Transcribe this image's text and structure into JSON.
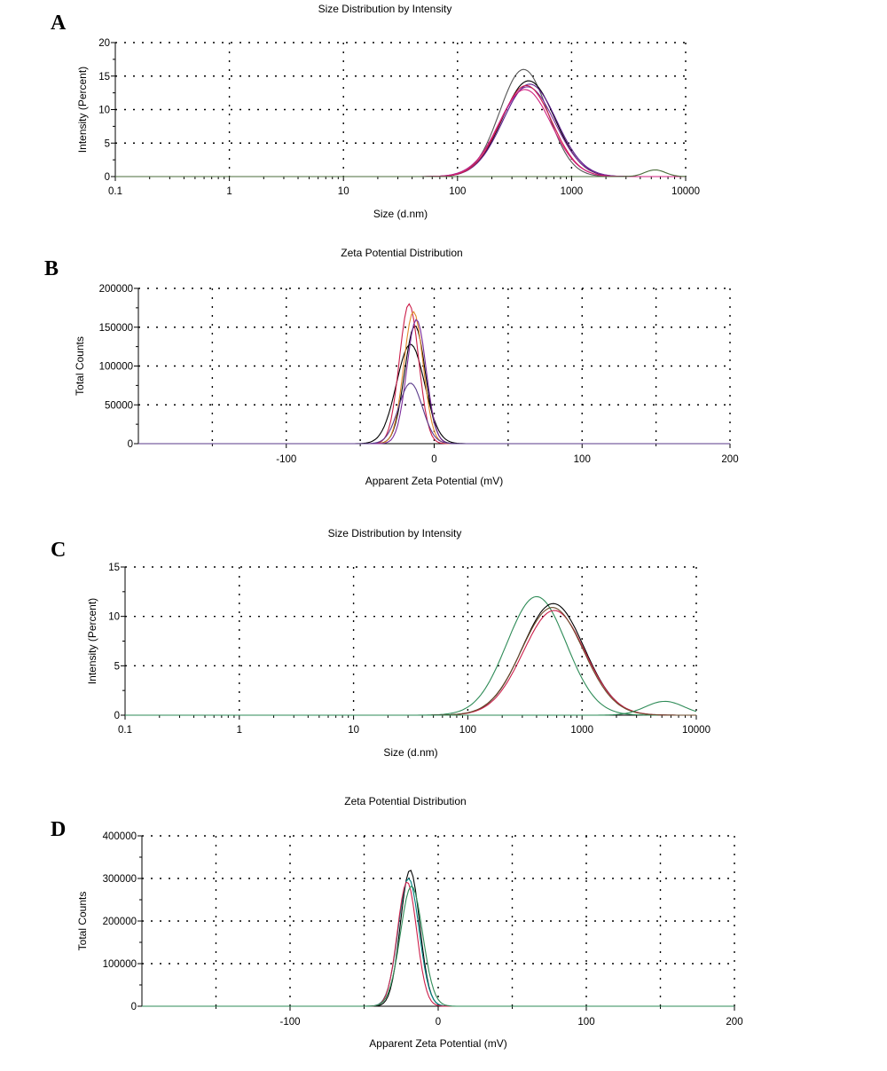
{
  "chart_data": [
    {
      "panel": "A",
      "type": "line",
      "title": "Size Distribution by Intensity",
      "xlabel": "Size (d.nm)",
      "ylabel": "Intensity (Percent)",
      "xscale": "log",
      "xlim": [
        0.1,
        10000
      ],
      "ylim": [
        0,
        20
      ],
      "xticks": [
        "0.1",
        "1",
        "10",
        "100",
        "1000",
        "10000"
      ],
      "yticks": [
        "0",
        "5",
        "10",
        "15",
        "20"
      ],
      "grid": true,
      "series": [
        {
          "color": "#555555",
          "peak_x": 380,
          "peak_y": 16.0,
          "width": 0.21
        },
        {
          "color": "#000000",
          "peak_x": 420,
          "peak_y": 14.3,
          "width": 0.23
        },
        {
          "color": "#5a1c8c",
          "peak_x": 430,
          "peak_y": 13.8,
          "width": 0.235
        },
        {
          "color": "#7a2a9a",
          "peak_x": 410,
          "peak_y": 13.4,
          "width": 0.24
        },
        {
          "color": "#cc1f4b",
          "peak_x": 400,
          "peak_y": 13.6,
          "width": 0.225
        },
        {
          "color": "#d02080",
          "peak_x": 390,
          "peak_y": 13.0,
          "width": 0.23
        },
        {
          "color": "#4a6b3a",
          "peak_x": 5400,
          "peak_y": 1.0,
          "width": 0.09
        }
      ]
    },
    {
      "panel": "B",
      "type": "line",
      "title": "Zeta Potential Distribution",
      "xlabel": "Apparent Zeta Potential (mV)",
      "ylabel": "Total Counts",
      "xscale": "linear",
      "xlim": [
        -200,
        200
      ],
      "ylim": [
        0,
        200000
      ],
      "xticks": [
        "-100",
        "0",
        "100",
        "200"
      ],
      "yticks": [
        "0",
        "50000",
        "100000",
        "150000",
        "200000"
      ],
      "grid": true,
      "series": [
        {
          "color": "#000000",
          "peak_x": -16,
          "peak_y": 128000,
          "width": 9.5
        },
        {
          "color": "#000000",
          "peak_x": -13,
          "peak_y": 152000,
          "width": 7.0
        },
        {
          "color": "#cc1f4b",
          "peak_x": -17,
          "peak_y": 180000,
          "width": 6.5
        },
        {
          "color": "#e08a2a",
          "peak_x": -14,
          "peak_y": 170000,
          "width": 6.5
        },
        {
          "color": "#7a2a9a",
          "peak_x": -12,
          "peak_y": 160000,
          "width": 6.5
        },
        {
          "color": "#5a3a8a",
          "peak_x": -16,
          "peak_y": 78000,
          "width": 8.0
        }
      ]
    },
    {
      "panel": "C",
      "type": "line",
      "title": "Size Distribution by Intensity",
      "xlabel": "Size (d.nm)",
      "ylabel": "Intensity (Percent)",
      "xscale": "log",
      "xlim": [
        0.1,
        10000
      ],
      "ylim": [
        0,
        15
      ],
      "xticks": [
        "0.1",
        "1",
        "10",
        "100",
        "1000",
        "10000"
      ],
      "yticks": [
        "0",
        "5",
        "10",
        "15"
      ],
      "grid": true,
      "series": [
        {
          "color": "#2e8b57",
          "peak_x": 400,
          "peak_y": 12.0,
          "width": 0.26
        },
        {
          "color": "#000000",
          "peak_x": 560,
          "peak_y": 11.3,
          "width": 0.27
        },
        {
          "color": "#cc1f4b",
          "peak_x": 570,
          "peak_y": 10.6,
          "width": 0.27
        },
        {
          "color": "#6b4a2a",
          "peak_x": 550,
          "peak_y": 10.9,
          "width": 0.27
        },
        {
          "color": "#2e8b57",
          "peak_x": 5300,
          "peak_y": 1.4,
          "width": 0.17
        }
      ]
    },
    {
      "panel": "D",
      "type": "line",
      "title": "Zeta Potential Distribution",
      "xlabel": "Apparent Zeta Potential (mV)",
      "ylabel": "Total Counts",
      "xscale": "linear",
      "xlim": [
        -200,
        200
      ],
      "ylim": [
        0,
        400000
      ],
      "xticks": [
        "-100",
        "0",
        "100",
        "200"
      ],
      "yticks": [
        "0",
        "100000",
        "200000",
        "300000",
        "400000"
      ],
      "grid": true,
      "series": [
        {
          "color": "#000000",
          "peak_x": -19,
          "peak_y": 320000,
          "width": 6.5
        },
        {
          "color": "#008080",
          "peak_x": -20,
          "peak_y": 300000,
          "width": 7.0
        },
        {
          "color": "#cc1f4b",
          "peak_x": -21,
          "peak_y": 292000,
          "width": 6.5
        },
        {
          "color": "#2e8b57",
          "peak_x": -18,
          "peak_y": 282000,
          "width": 7.5
        }
      ]
    }
  ]
}
